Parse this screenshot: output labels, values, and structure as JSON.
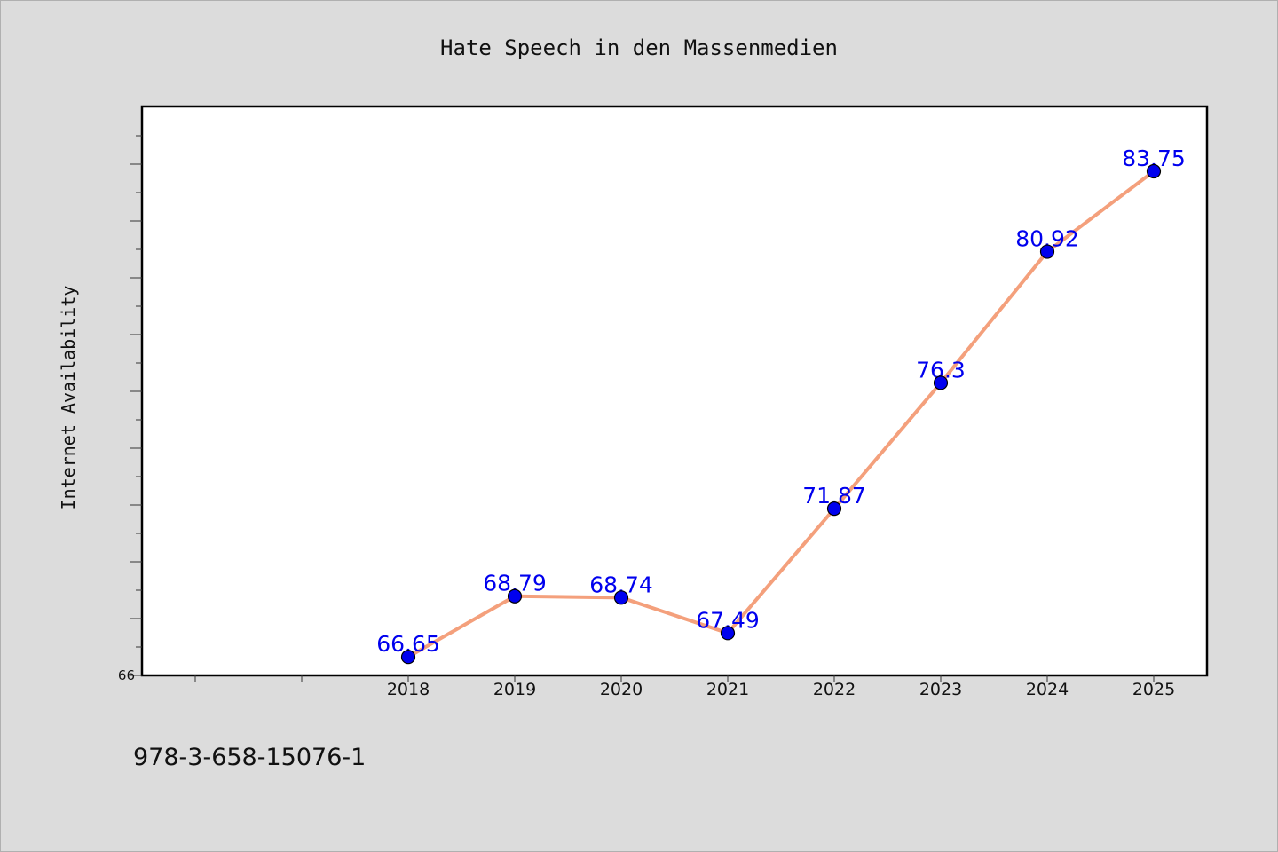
{
  "chart_data": {
    "type": "line",
    "title": "Hate Speech in den Massenmedien",
    "xlabel": "",
    "ylabel": "Internet Availability",
    "categories": [
      "2018",
      "2019",
      "2020",
      "2021",
      "2022",
      "2023",
      "2024",
      "2025"
    ],
    "series": [
      {
        "values": [
          66.65,
          68.79,
          68.74,
          67.49,
          71.87,
          76.3,
          80.92,
          83.75
        ],
        "data_labels": [
          "66.65",
          "68.79",
          "68.74",
          "67.49",
          "71.87",
          "76.3",
          "80.92",
          "83.75"
        ]
      }
    ],
    "y_tick_label": "66",
    "ylim": [
      66,
      86
    ],
    "grid": false,
    "legend": "none",
    "colors": {
      "line": "#f4a07c",
      "marker": "#0000ee",
      "label": "#0000ee",
      "plot_background": "#ffffff",
      "page_background": "#dcdcdc"
    }
  },
  "footer": {
    "isbn": "978-3-658-15076-1"
  }
}
